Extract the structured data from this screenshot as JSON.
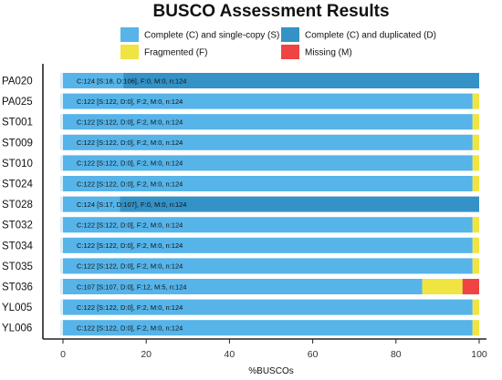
{
  "chart_data": {
    "type": "bar",
    "orientation": "horizontal",
    "stacked": true,
    "title": "BUSCO Assessment Results",
    "xlabel": "%BUSCOs",
    "ylabel": "",
    "xlim": [
      0,
      100
    ],
    "xticks": [
      "0",
      "20",
      "40",
      "60",
      "80",
      "100"
    ],
    "legend_position": "top",
    "categories": [
      "PA020",
      "PA025",
      "ST001",
      "ST009",
      "ST010",
      "ST024",
      "ST028",
      "ST032",
      "ST034",
      "ST035",
      "ST036",
      "YL005",
      "YL006"
    ],
    "series": [
      {
        "name": "Complete (C) and single-copy (S)",
        "color": "#56B4E9",
        "values": [
          14.5,
          98.4,
          98.4,
          98.4,
          98.4,
          98.4,
          13.7,
          98.4,
          98.4,
          98.4,
          86.3,
          98.4,
          98.4
        ]
      },
      {
        "name": "Complete (C) and duplicated (D)",
        "color": "#3492C7",
        "values": [
          85.5,
          0,
          0,
          0,
          0,
          0,
          86.3,
          0,
          0,
          0,
          0,
          0,
          0
        ]
      },
      {
        "name": "Fragmented (F)",
        "color": "#F0E442",
        "values": [
          0,
          1.6,
          1.6,
          1.6,
          1.6,
          1.6,
          0,
          1.6,
          1.6,
          1.6,
          9.7,
          1.6,
          1.6
        ]
      },
      {
        "name": "Missing (M)",
        "color": "#F04442",
        "values": [
          0,
          0,
          0,
          0,
          0,
          0,
          0,
          0,
          0,
          0,
          4.0,
          0,
          0
        ]
      }
    ],
    "bar_labels": [
      "C:124 [S:18, D:106], F:0, M:0, n:124",
      "C:122 [S:122, D:0], F:2, M:0, n:124",
      "C:122 [S:122, D:0], F:2, M:0, n:124",
      "C:122 [S:122, D:0], F:2, M:0, n:124",
      "C:122 [S:122, D:0], F:2, M:0, n:124",
      "C:122 [S:122, D:0], F:2, M:0, n:124",
      "C:124 [S:17, D:107], F:0, M:0, n:124",
      "C:122 [S:122, D:0], F:2, M:0, n:124",
      "C:122 [S:122, D:0], F:2, M:0, n:124",
      "C:122 [S:122, D:0], F:2, M:0, n:124",
      "C:107 [S:107, D:0], F:12, M:5, n:124",
      "C:122 [S:122, D:0], F:2, M:0, n:124",
      "C:122 [S:122, D:0], F:2, M:0, n:124"
    ]
  }
}
